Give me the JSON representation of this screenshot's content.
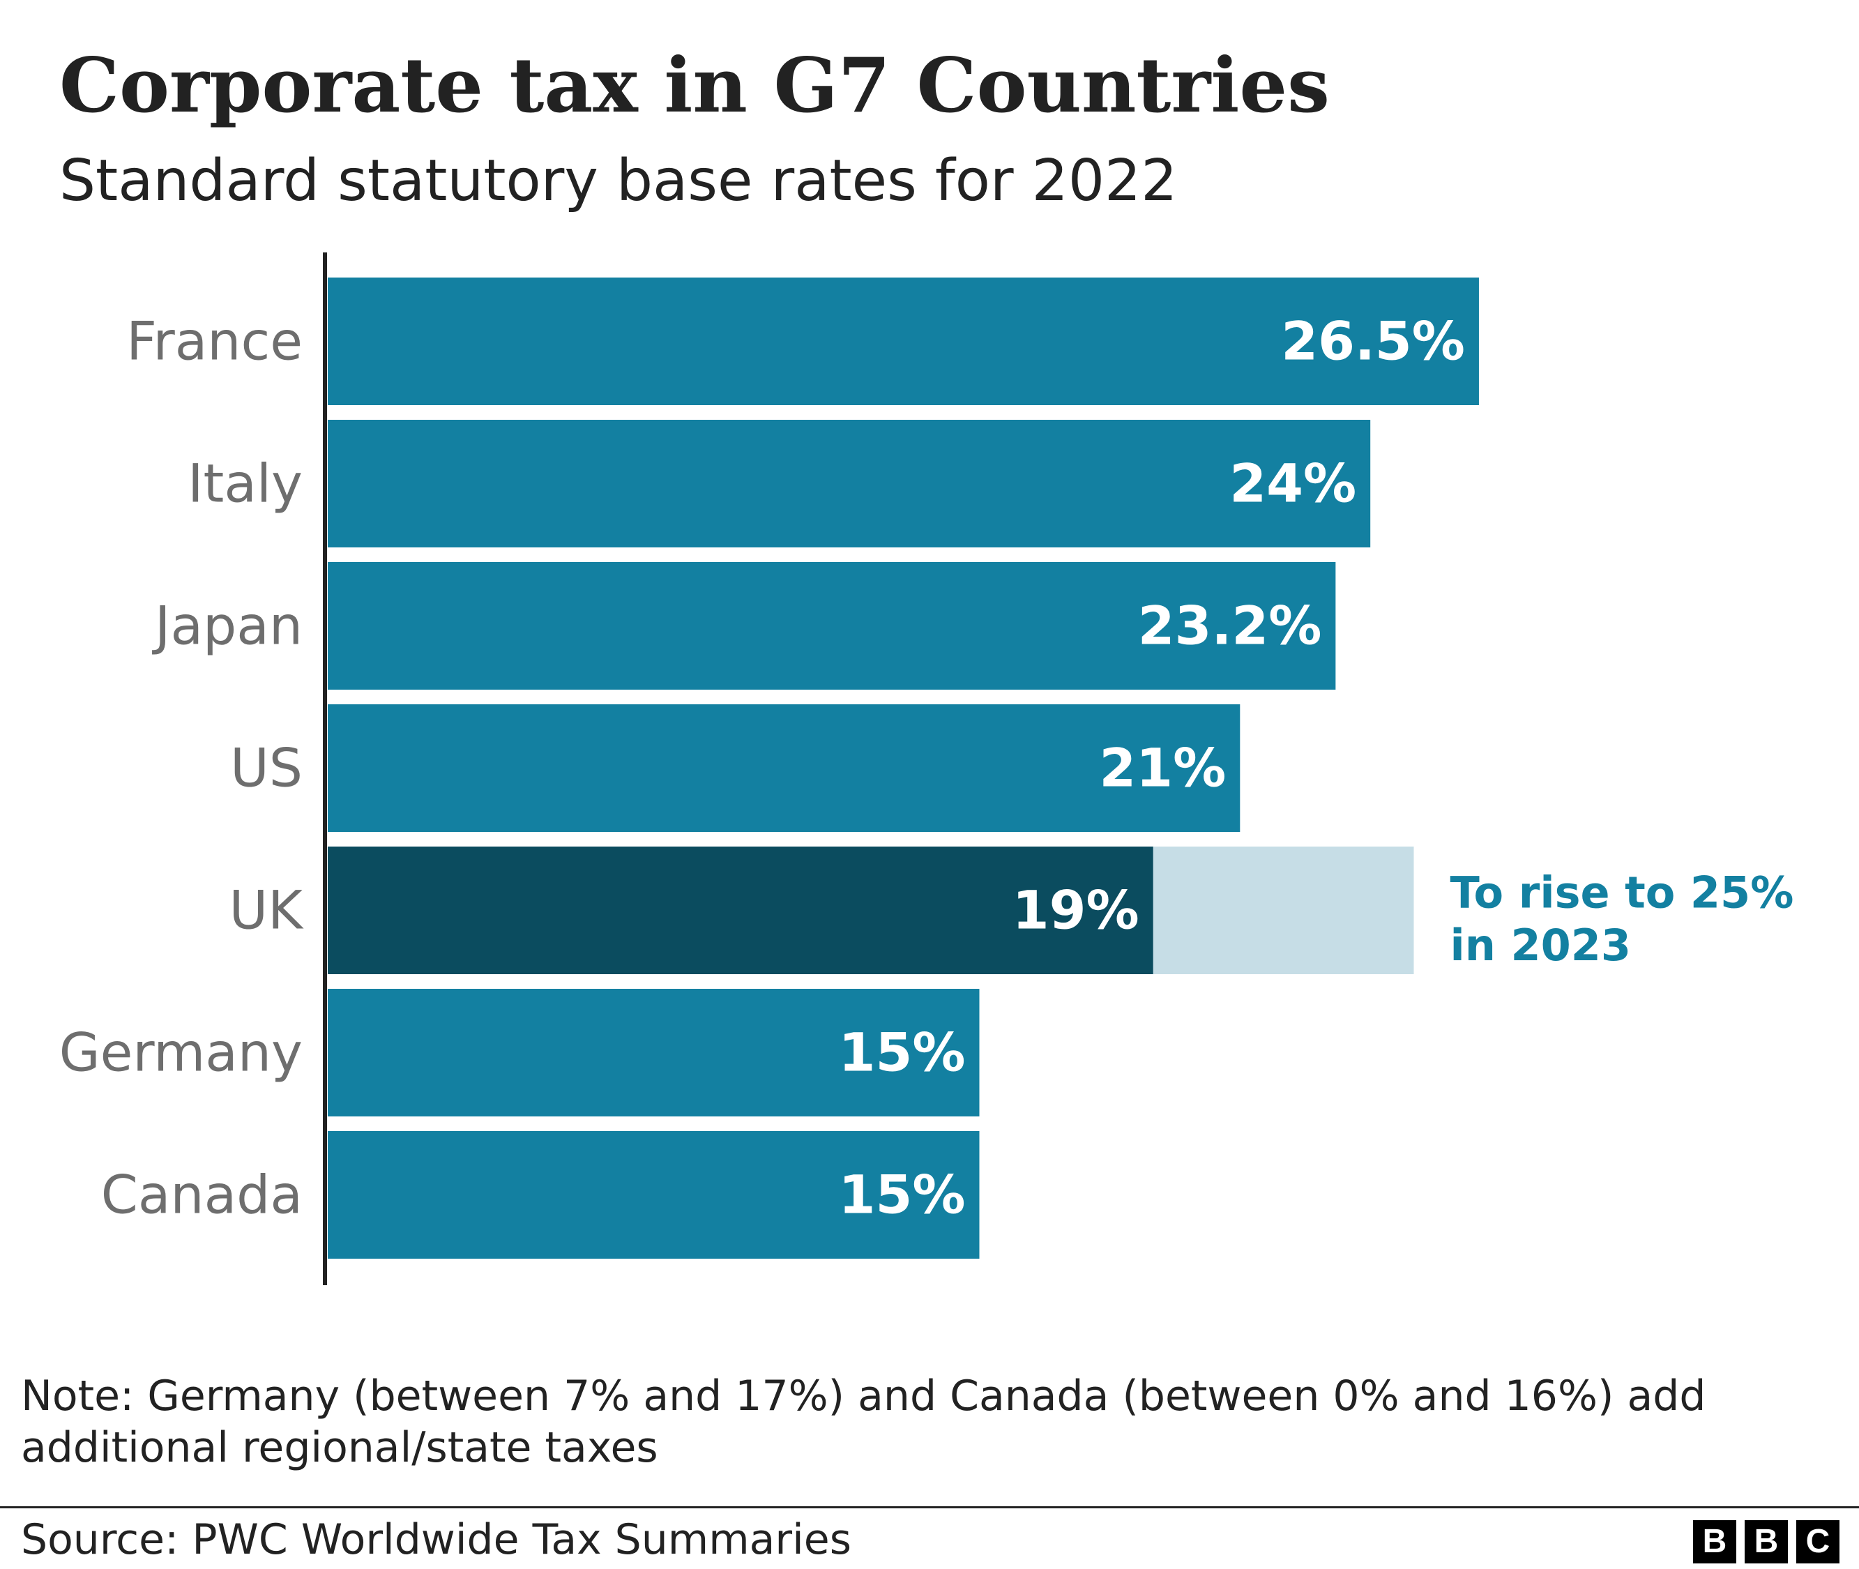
{
  "title": "Corporate tax in G7 Countries",
  "subtitle": "Standard statutory base rates for 2022",
  "chart_data": {
    "type": "bar",
    "orientation": "horizontal",
    "title": "Corporate tax in G7 Countries",
    "subtitle": "Standard statutory base rates for 2022",
    "categories": [
      "France",
      "Italy",
      "Japan",
      "US",
      "UK",
      "Germany",
      "Canada"
    ],
    "values": [
      26.5,
      24,
      23.2,
      21,
      19,
      15,
      15
    ],
    "value_labels": [
      "26.5%",
      "24%",
      "23.2%",
      "21%",
      "19%",
      "15%",
      "15%"
    ],
    "xlim": [
      0,
      30
    ],
    "highlight_category": "UK",
    "projected": {
      "category": "UK",
      "value": 25,
      "annotation": [
        "To rise to 25%",
        "in 2023"
      ]
    },
    "colors": {
      "bar": "#1380a1",
      "highlight": "#0b4c5f",
      "projected": "#c6dde6",
      "annotation": "#1380a1",
      "category_label": "#6e6e6e",
      "value_label": "#ffffff",
      "axis": "#222222"
    },
    "xlabel": "",
    "ylabel": ""
  },
  "note": "Note: Germany (between 7% and 17%) and Canada (between 0% and 16%) add additional regional/state taxes",
  "source": "Source: PWC Worldwide Tax Summaries",
  "logo": [
    "B",
    "B",
    "C"
  ]
}
